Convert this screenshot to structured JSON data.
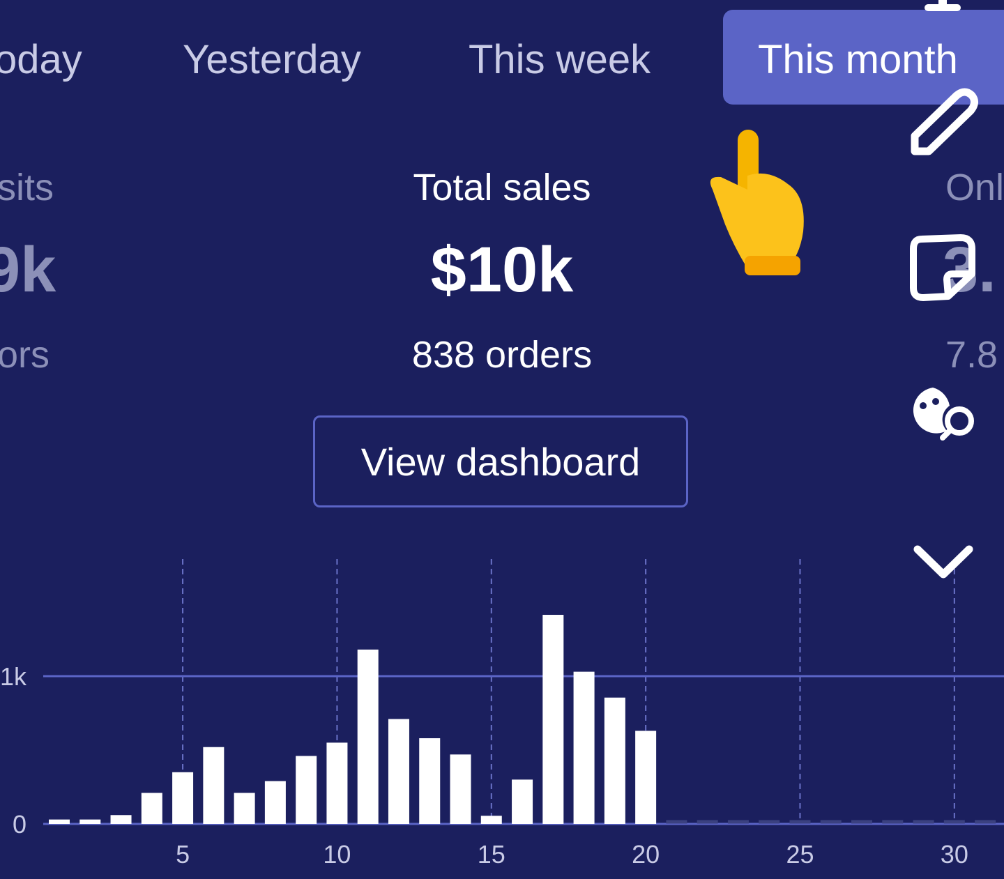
{
  "tabs": [
    {
      "label": "oday",
      "active": false
    },
    {
      "label": "Yesterday",
      "active": false
    },
    {
      "label": "This week",
      "active": false
    },
    {
      "label": "This month",
      "active": true
    }
  ],
  "stats": {
    "left": {
      "label": "sits",
      "value": "9k",
      "sub": "ors"
    },
    "center": {
      "label": "Total sales",
      "value": "$10k",
      "sub": "838 orders"
    },
    "right": {
      "label": "Onl",
      "value": "3.",
      "sub": "7.8"
    }
  },
  "view_dashboard_label": "View dashboard",
  "overlay_tools": [
    "text-icon",
    "pencil-icon",
    "sticker-icon",
    "emoji-search-icon",
    "chevron-down-icon",
    "pointing-hand-emoji"
  ],
  "colors": {
    "background": "#1b1f5e",
    "accent": "#5b64c6",
    "bar": "#ffffff"
  },
  "chart_data": {
    "type": "bar",
    "categories": [
      1,
      2,
      3,
      4,
      5,
      6,
      7,
      8,
      9,
      10,
      11,
      12,
      13,
      14,
      15,
      16,
      17,
      18,
      19,
      20,
      21,
      22,
      23,
      24,
      25,
      26,
      27,
      28,
      29,
      30,
      31
    ],
    "values": [
      30,
      30,
      60,
      210,
      350,
      520,
      210,
      290,
      460,
      550,
      1180,
      710,
      580,
      470,
      55,
      300,
      1415,
      1030,
      855,
      630,
      null,
      null,
      null,
      null,
      null,
      null,
      null,
      null,
      null,
      null,
      null
    ],
    "xticks": [
      "5",
      "10",
      "15",
      "20",
      "25",
      "30"
    ],
    "xtick_values": [
      5,
      10,
      15,
      20,
      25,
      30
    ],
    "yticks": [
      "0",
      "1k"
    ],
    "ytick_values": [
      0,
      1000
    ],
    "xlabel": "",
    "ylabel": "",
    "grid": "vertical dashed at x ticks, horizontal at y ticks"
  }
}
